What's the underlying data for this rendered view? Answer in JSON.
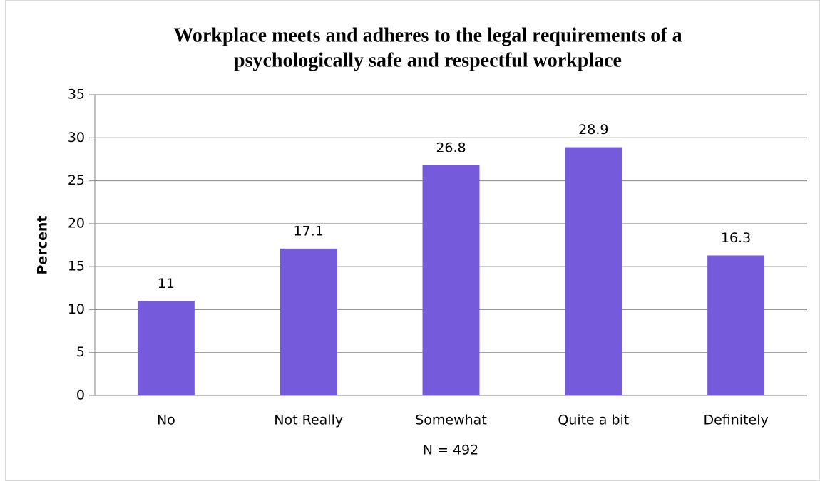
{
  "chart_data": {
    "type": "bar",
    "title": [
      "Workplace meets and adheres to the legal requirements of a",
      "psychologically safe and respectful workplace"
    ],
    "y_label": "Percent",
    "x_label": "N = 492",
    "categories": [
      "No",
      "Not Really",
      "Somewhat",
      "Quite a bit",
      "Definitely"
    ],
    "values": [
      11,
      17.1,
      26.8,
      28.9,
      16.3
    ],
    "color": "#755bdb",
    "ylim": [
      0,
      35
    ],
    "yticks": [
      0,
      5,
      10,
      15,
      20,
      25,
      30,
      35
    ],
    "grid": true
  }
}
